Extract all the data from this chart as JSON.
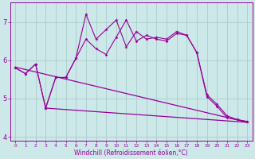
{
  "x": [
    0,
    1,
    2,
    3,
    4,
    5,
    6,
    7,
    8,
    9,
    10,
    11,
    12,
    13,
    14,
    15,
    16,
    17,
    18,
    19,
    20,
    21,
    22,
    23
  ],
  "line1_y": [
    5.8,
    5.65,
    5.9,
    4.75,
    5.55,
    5.55,
    6.05,
    7.2,
    6.55,
    6.8,
    7.05,
    6.35,
    6.75,
    6.55,
    6.6,
    6.55,
    6.75,
    6.65,
    6.2,
    5.1,
    4.85,
    4.55,
    4.45,
    4.4
  ],
  "line2_y": [
    5.8,
    5.65,
    5.9,
    4.75,
    5.55,
    5.55,
    6.05,
    6.55,
    6.3,
    6.15,
    6.6,
    7.05,
    6.5,
    6.65,
    6.55,
    6.5,
    6.7,
    6.65,
    6.2,
    5.05,
    4.8,
    4.5,
    4.45,
    4.4
  ],
  "trend1_x": [
    0,
    23
  ],
  "trend1_y": [
    5.82,
    4.38
  ],
  "trend2_x": [
    3,
    23
  ],
  "trend2_y": [
    4.75,
    4.38
  ],
  "color": "#990099",
  "bg_color": "#cce8e8",
  "grid_color": "#aacccc",
  "xlabel": "Windchill (Refroidissement éolien,°C)",
  "ylim": [
    3.9,
    7.5
  ],
  "xlim": [
    -0.5,
    23.5
  ],
  "xticks": [
    0,
    1,
    2,
    3,
    4,
    5,
    6,
    7,
    8,
    9,
    10,
    11,
    12,
    13,
    14,
    15,
    16,
    17,
    18,
    19,
    20,
    21,
    22,
    23
  ],
  "yticks": [
    4,
    5,
    6,
    7
  ]
}
